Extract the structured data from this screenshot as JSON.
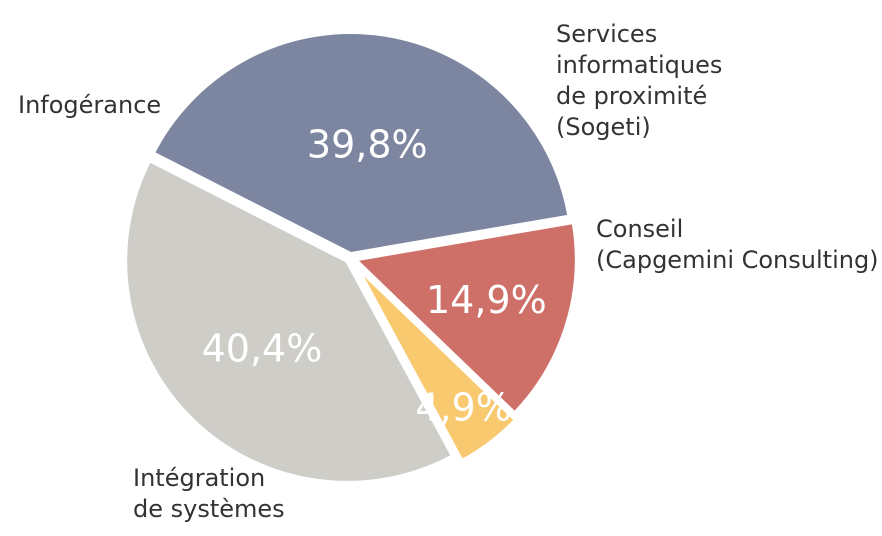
{
  "chart_data": {
    "type": "pie",
    "title": "",
    "legend": "none",
    "slices": [
      {
        "key": "infogerance",
        "label_lines": [
          "Infogérance"
        ],
        "value": 39.8,
        "value_label": "39,8%",
        "color": "#7d86a0"
      },
      {
        "key": "services",
        "label_lines": [
          "Services",
          "informatiques",
          "de proximité",
          "(Sogeti)"
        ],
        "value": 14.9,
        "value_label": "14,9%",
        "color": "#cf7068"
      },
      {
        "key": "conseil",
        "label_lines": [
          "Conseil",
          "(Capgemini Consulting)"
        ],
        "value": 4.9,
        "value_label": "4,9%",
        "color": "#f8c96e"
      },
      {
        "key": "integration",
        "label_lines": [
          "Intégration",
          "de systèmes"
        ],
        "value": 40.4,
        "value_label": "40,4%",
        "color": "#cfcdc8"
      }
    ]
  }
}
